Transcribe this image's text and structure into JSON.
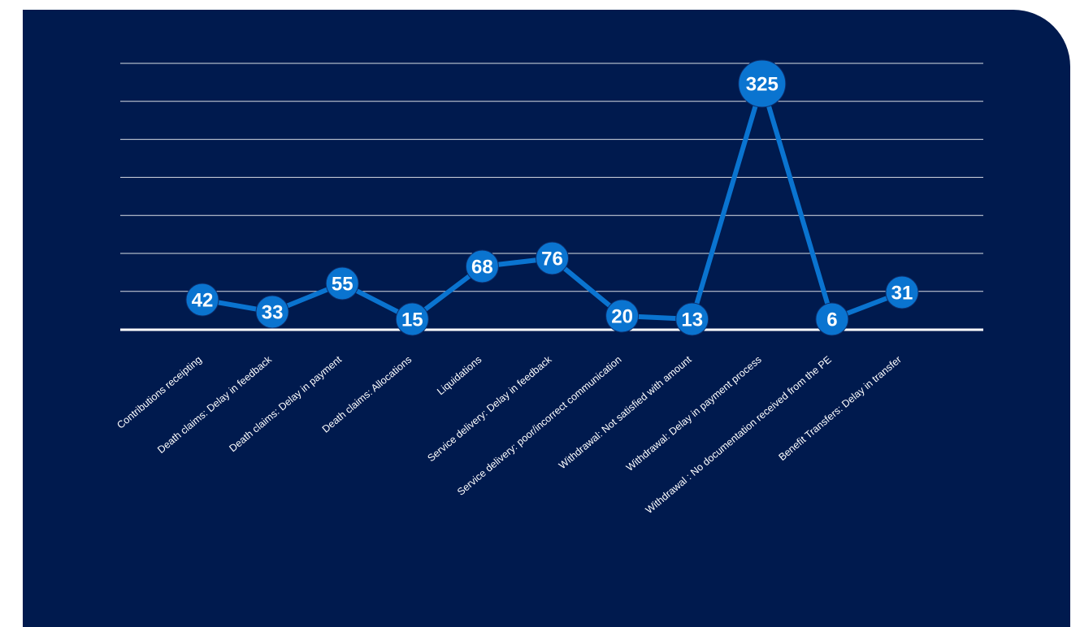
{
  "chart_data": {
    "type": "line",
    "title": "",
    "xlabel": "",
    "ylabel": "",
    "categories": [
      "Contributions receipting",
      "Death claims: Delay in feedback",
      "Death claims: Delay in payment",
      "Death claims: Allocations",
      "Liquidations",
      "Service delivery: Delay in feedback",
      "Service delivery: poor/incorrect communication",
      "Withdrawal: Not satisfied with amount",
      "Withdrawal: Delay in payment process",
      "Withdrawal : No documentation received from the PE",
      "Benefit Transfers: Delay in transfer"
    ],
    "series": [
      {
        "values": [
          42,
          33,
          55,
          15,
          68,
          76,
          20,
          13,
          325,
          6,
          31
        ],
        "labels": [
          "42",
          "33",
          "55",
          "15",
          "68",
          "76",
          "20",
          "13",
          "325",
          "6",
          "31"
        ]
      }
    ],
    "grid": true,
    "legend": "none",
    "colors": {
      "background": "#001a4e",
      "line": "#0a74d0",
      "grid": "#ffffff",
      "text": "#ffffff"
    }
  }
}
